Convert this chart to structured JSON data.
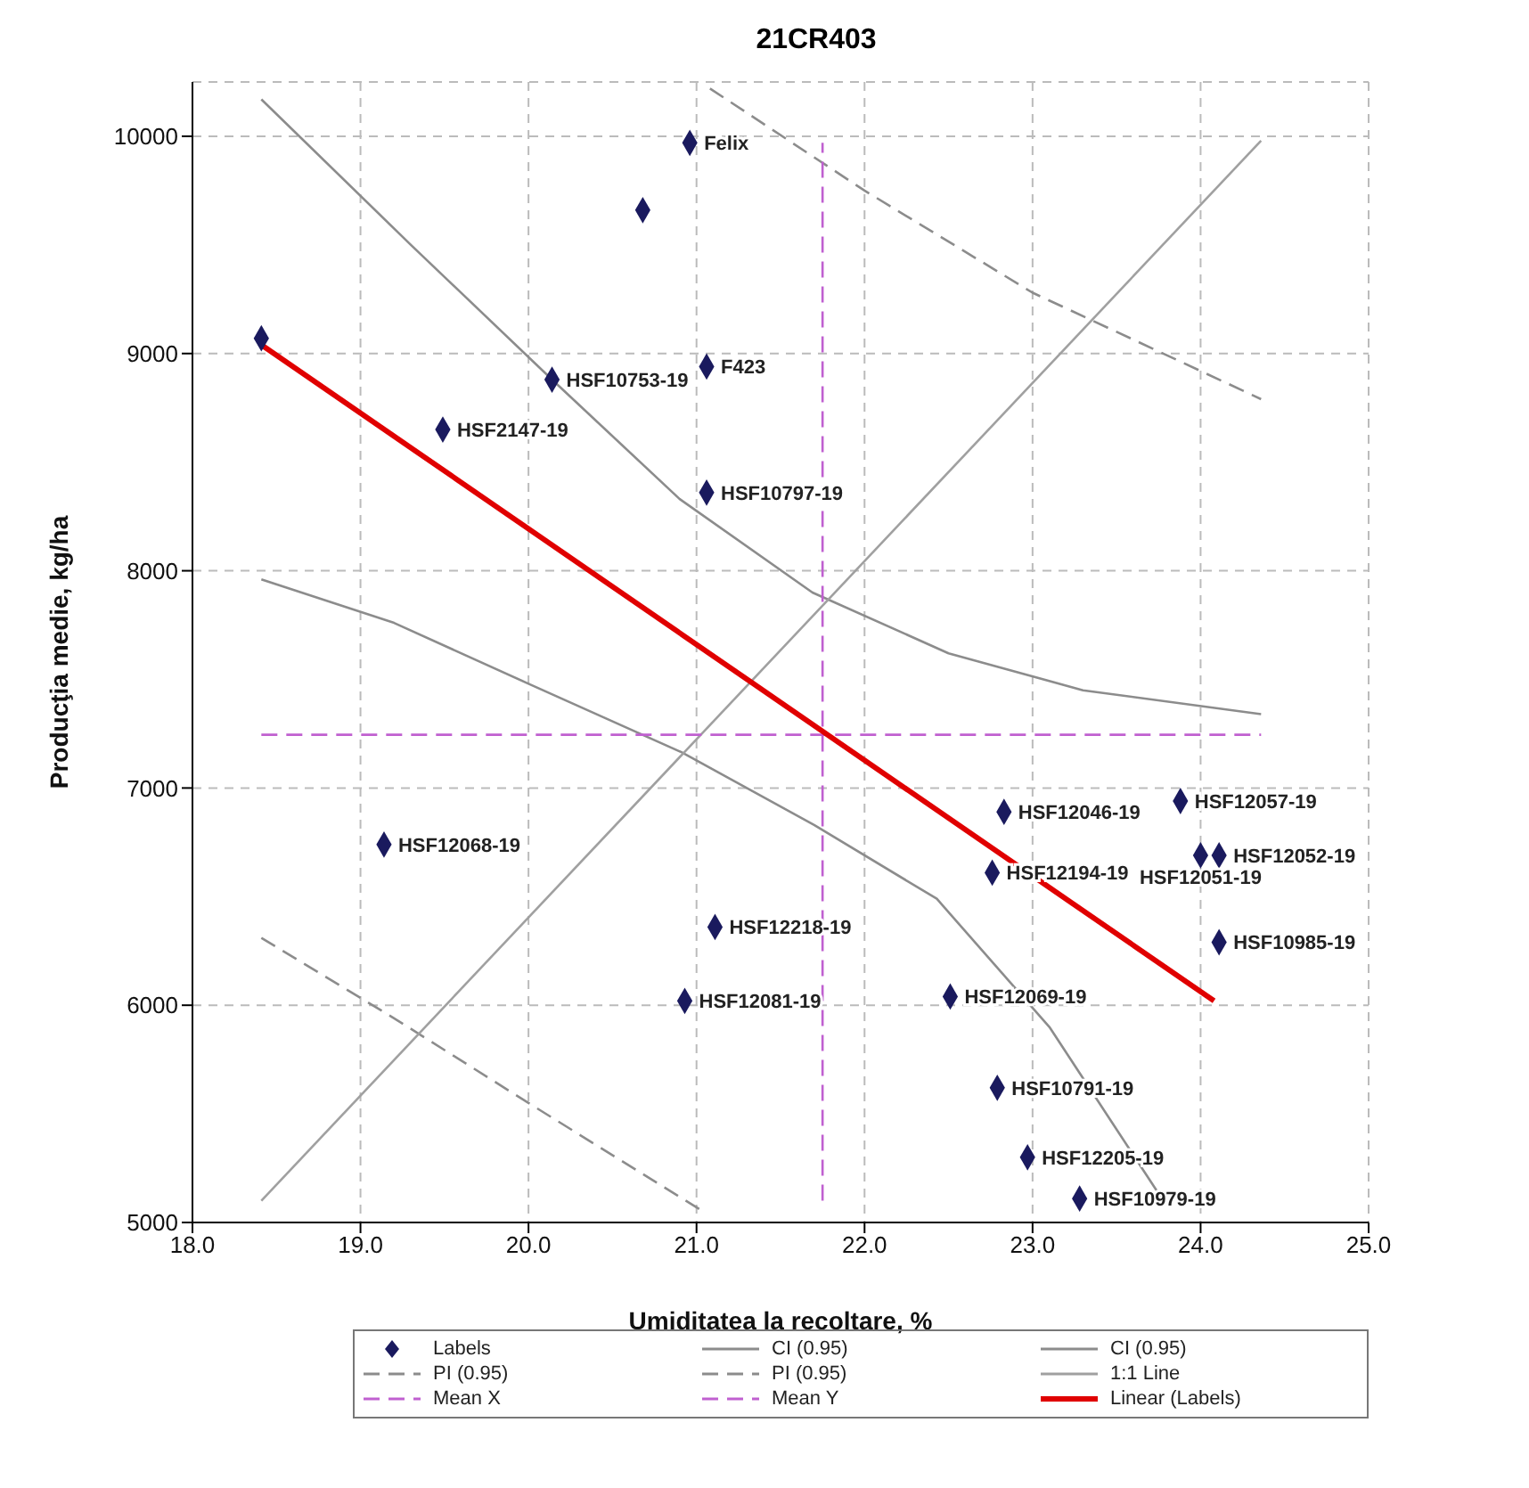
{
  "chart_data": {
    "type": "scatter",
    "title": "21CR403",
    "xlabel": "Umiditatea la recoltare, %",
    "ylabel": "Producţia medie, kg/ha",
    "xlim": [
      18,
      25
    ],
    "xticks": [
      {
        "value": 18,
        "label": "18.0"
      },
      {
        "value": 19,
        "label": "19.0"
      },
      {
        "value": 20,
        "label": "20.0"
      },
      {
        "value": 21,
        "label": "21.0"
      },
      {
        "value": 22,
        "label": "22.0"
      },
      {
        "value": 23,
        "label": "23.0"
      },
      {
        "value": 24,
        "label": "24.0"
      },
      {
        "value": 25,
        "label": "25.0"
      }
    ],
    "ylim": [
      5000,
      10250
    ],
    "yticks": [
      5000,
      6000,
      7000,
      8000,
      9000,
      10000
    ],
    "grid": true,
    "legend": "bottom",
    "series": [
      {
        "name": "Labels",
        "marker": "diamond",
        "color": "#1a1a5e",
        "x": [
          20.96,
          20.68,
          18.41,
          21.06,
          20.14,
          19.49,
          21.06,
          23.88,
          22.83,
          24.11,
          24.0,
          22.76,
          19.14,
          24.11,
          21.11,
          22.51,
          20.93,
          22.79,
          22.97,
          23.28
        ],
        "values": [
          9970,
          9660,
          9070,
          8940,
          8880,
          8650,
          8360,
          6940,
          6890,
          6690,
          6690,
          6610,
          6740,
          6290,
          6360,
          6040,
          6020,
          5620,
          5300,
          5110
        ]
      },
      {
        "name": "CI (0.95)",
        "type": "line",
        "marker": "none",
        "line_style": "solid",
        "color": "#8c8c8c",
        "x": [
          18.41,
          19.3,
          20.14,
          20.9,
          21.69,
          22.5,
          23.3,
          24.36
        ],
        "values": [
          10170,
          9500,
          8880,
          8330,
          7900,
          7620,
          7450,
          7340
        ]
      },
      {
        "name": "CI (0.95)",
        "type": "line",
        "marker": "none",
        "line_style": "solid",
        "color": "#8c8c8c",
        "x": [
          18.41,
          19.2,
          20.0,
          20.91,
          21.7,
          22.43,
          23.1,
          23.77
        ],
        "values": [
          7960,
          7760,
          7480,
          7165,
          6830,
          6490,
          5900,
          5110
        ]
      },
      {
        "name": "PI (0.95)",
        "type": "line",
        "marker": "none",
        "line_style": "dashed",
        "color": "#8c8c8c",
        "x": [
          21.08,
          22.0,
          23.0,
          24.36
        ],
        "values": [
          10220,
          9750,
          9280,
          8790
        ]
      },
      {
        "name": "PI (0.95)",
        "type": "line",
        "marker": "none",
        "line_style": "dashed",
        "color": "#8c8c8c",
        "x": [
          18.41,
          19.2,
          20.0,
          21.02
        ],
        "values": [
          6310,
          5940,
          5550,
          5060
        ]
      },
      {
        "name": "1:1 Line",
        "type": "line",
        "marker": "none",
        "line_style": "solid",
        "color": "#a0a0a0",
        "x": [
          18.41,
          24.36
        ],
        "values": [
          5100,
          9980
        ]
      },
      {
        "name": "Mean X",
        "type": "line",
        "marker": "none",
        "line_style": "dashed",
        "color": "#c060d0",
        "x": [
          21.75,
          21.75
        ],
        "values": [
          5100,
          9970
        ]
      },
      {
        "name": "Mean Y",
        "type": "line",
        "marker": "none",
        "line_style": "dashed",
        "color": "#c060d0",
        "x": [
          18.41,
          24.36
        ],
        "values": [
          7245,
          7245
        ]
      },
      {
        "name": "Linear (Labels)",
        "type": "line",
        "marker": "none",
        "line_style": "solid",
        "color": "#e00000",
        "x": [
          18.41,
          24.08
        ],
        "values": [
          9040,
          6020
        ]
      }
    ],
    "annotations": [
      {
        "text": "Felix",
        "x": 20.96,
        "y": 9970
      },
      {
        "text": "F423",
        "x": 21.06,
        "y": 8940
      },
      {
        "text": "HSF10753-19",
        "x": 20.14,
        "y": 8880
      },
      {
        "text": "HSF2147-19",
        "x": 19.49,
        "y": 8650
      },
      {
        "text": "HSF10797-19",
        "x": 21.06,
        "y": 8360
      },
      {
        "text": "HSF12057-19",
        "x": 23.88,
        "y": 6940
      },
      {
        "text": "HSF12046-19",
        "x": 22.83,
        "y": 6890
      },
      {
        "text": "HSF12052-19",
        "x": 24.11,
        "y": 6690
      },
      {
        "text": "HSF12051-19",
        "x": 24.0,
        "y": 6690
      },
      {
        "text": "HSF12194-19",
        "x": 22.76,
        "y": 6610
      },
      {
        "text": "HSF12068-19",
        "x": 19.14,
        "y": 6740
      },
      {
        "text": "HSF10985-19",
        "x": 24.11,
        "y": 6290
      },
      {
        "text": "HSF12218-19",
        "x": 21.11,
        "y": 6360
      },
      {
        "text": "HSF12069-19",
        "x": 22.51,
        "y": 6040
      },
      {
        "text": "HSF12081-19",
        "x": 20.93,
        "y": 6020
      },
      {
        "text": "HSF10791-19",
        "x": 22.79,
        "y": 5620
      },
      {
        "text": "HSF12205-19",
        "x": 22.97,
        "y": 5300
      },
      {
        "text": "HSF10979-19",
        "x": 23.28,
        "y": 5110
      }
    ]
  }
}
